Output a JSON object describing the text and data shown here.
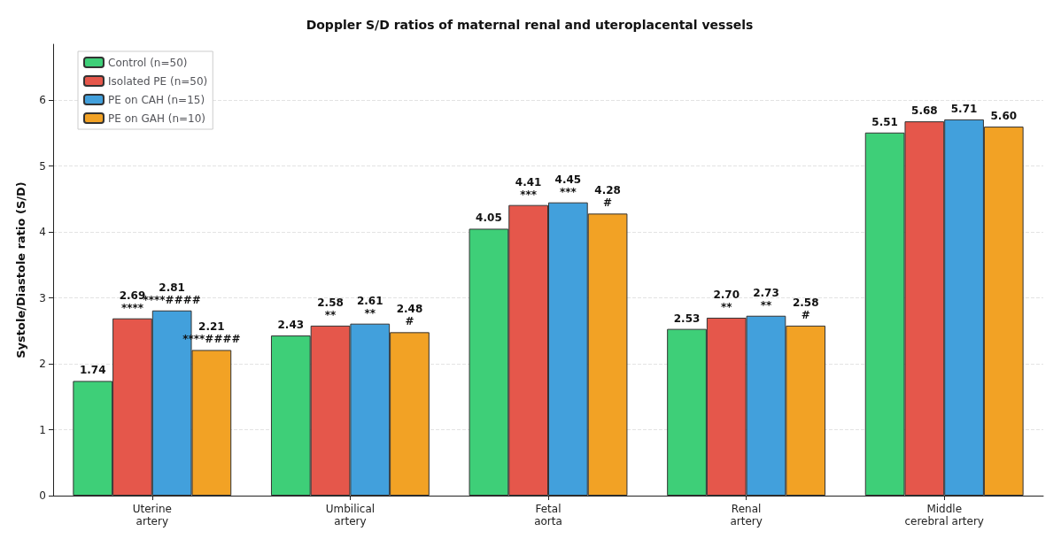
{
  "chart_data": {
    "type": "bar",
    "title": "Doppler S/D ratios of maternal renal and uteroplacental vessels",
    "ylabel": "Systole/Diastole ratio (S/D)",
    "categories": [
      "Uterine\nartery",
      "Umbilical\nartery",
      "Fetal\naorta",
      "Renal\nartery",
      "Middle\ncerebral artery"
    ],
    "series": [
      {
        "name": "Control (n=50)",
        "color": "#3ecf78",
        "values": [
          1.74,
          2.43,
          4.05,
          2.53,
          5.51
        ],
        "value_labels": [
          "1.74",
          "2.43",
          "4.05",
          "2.53",
          "5.51"
        ]
      },
      {
        "name": "Isolated PE (n=50)",
        "color": "#e5574b",
        "values": [
          2.69,
          2.58,
          4.41,
          2.7,
          5.68
        ],
        "value_labels": [
          "2.69\n****",
          "2.58\n**",
          "4.41\n***",
          "2.70\n**",
          "5.68"
        ]
      },
      {
        "name": "PE on CAH (n=15)",
        "color": "#42a0dc",
        "values": [
          2.81,
          2.61,
          4.45,
          2.73,
          5.71
        ],
        "value_labels": [
          "2.81\n****####",
          "2.61\n**",
          "4.45\n***",
          "2.73\n**",
          "5.71"
        ]
      },
      {
        "name": "PE on GAH (n=10)",
        "color": "#f2a225",
        "values": [
          2.21,
          2.48,
          4.28,
          2.58,
          5.6
        ],
        "value_labels": [
          "2.21\n****####",
          "2.48\n#",
          "4.28\n#",
          "2.58\n#",
          "5.60"
        ]
      }
    ],
    "ylim": [
      0,
      6.85
    ],
    "yticks": [
      0,
      1,
      2,
      3,
      4,
      5,
      6
    ],
    "grid": "y",
    "legend": "top left"
  }
}
